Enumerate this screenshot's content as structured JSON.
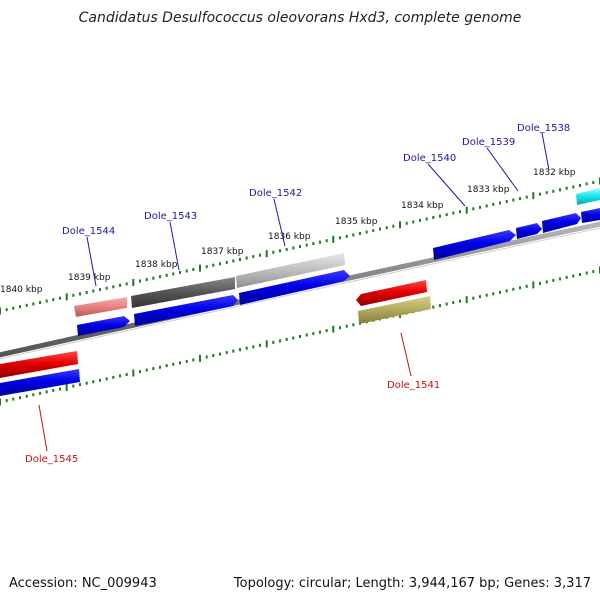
{
  "title": "Candidatus Desulfococcus oleovorans Hxd3, complete genome",
  "footer": {
    "accession": "Accession: NC_009943",
    "summary": "Topology: circular; Length: 3,944,167 bp; Genes: 3,317"
  },
  "colors": {
    "background": "#ffffff",
    "backbone": "#808080",
    "tick": "#1d7a1d",
    "forward_gene": "#0000e6",
    "reverse_gene": "#e60000",
    "label_forward": "#1a1aa8",
    "label_reverse": "#cc1111"
  },
  "ticks": [
    {
      "label": "1840 kbp"
    },
    {
      "label": "1839 kbp"
    },
    {
      "label": "1838 kbp"
    },
    {
      "label": "1837 kbp"
    },
    {
      "label": "1836 kbp"
    },
    {
      "label": "1835 kbp"
    },
    {
      "label": "1834 kbp"
    },
    {
      "label": "1833 kbp"
    },
    {
      "label": "1832 kbp"
    }
  ],
  "gene_labels": [
    {
      "label": "Dole_1544",
      "strand": "forward"
    },
    {
      "label": "Dole_1543",
      "strand": "forward"
    },
    {
      "label": "Dole_1542",
      "strand": "forward"
    },
    {
      "label": "Dole_1540",
      "strand": "forward"
    },
    {
      "label": "Dole_1539",
      "strand": "forward"
    },
    {
      "label": "Dole_1538",
      "strand": "forward"
    },
    {
      "label": "Dole_1541",
      "strand": "reverse"
    },
    {
      "label": "Dole_1545",
      "strand": "reverse"
    }
  ]
}
